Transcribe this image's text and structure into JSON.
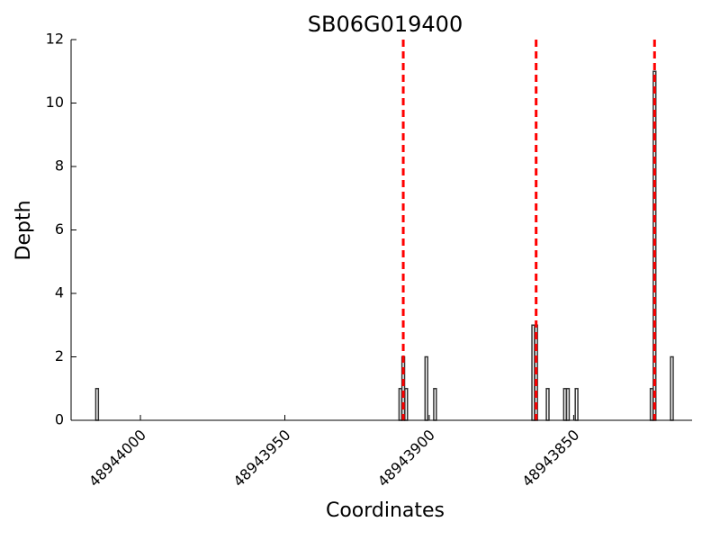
{
  "chart_data": {
    "type": "bar",
    "title": "SB06G019400",
    "xlabel": "Coordinates",
    "ylabel": "Depth",
    "x": [
      48944015,
      48943910,
      48943909,
      48943908,
      48943901,
      48943898,
      48943864,
      48943863,
      48943859,
      48943853,
      48943852,
      48943849,
      48943823,
      48943822,
      48943816
    ],
    "values": [
      1,
      1,
      2,
      1,
      2,
      1,
      3,
      3,
      1,
      1,
      1,
      1,
      1,
      11,
      2
    ],
    "color": "#333333",
    "vlines": [
      48943909,
      48943863,
      48943822
    ],
    "vline_color": "#ff0000",
    "xlim": [
      48944024,
      48943809
    ],
    "xticks": [
      48944000,
      48943950,
      48943900,
      48943850
    ],
    "ylim": [
      0,
      12
    ],
    "yticks": [
      0,
      2,
      4,
      6,
      8,
      10,
      12
    ]
  }
}
